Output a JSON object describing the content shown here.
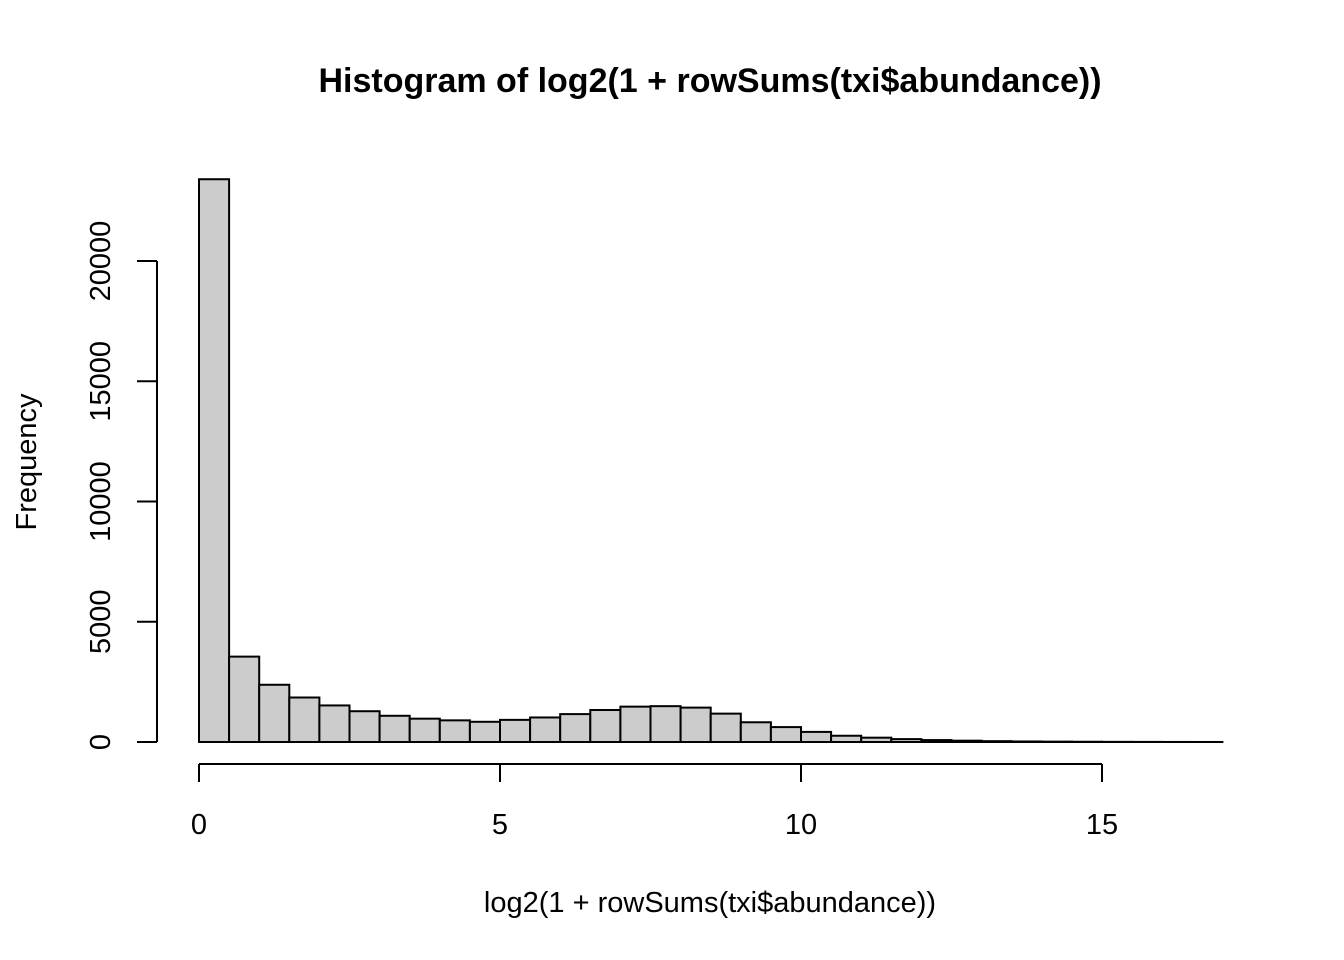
{
  "chart_data": {
    "type": "bar",
    "subtype": "histogram",
    "title": "Histogram of log2(1 + rowSums(txi$abundance))",
    "xlabel": "log2(1 + rowSums(txi$abundance))",
    "ylabel": "Frequency",
    "xlim": [
      0,
      17
    ],
    "ylim": [
      0,
      23400
    ],
    "bin_width": 0.5,
    "bins": [
      {
        "x0": 0.0,
        "x1": 0.5,
        "count": 23400
      },
      {
        "x0": 0.5,
        "x1": 1.0,
        "count": 3550
      },
      {
        "x0": 1.0,
        "x1": 1.5,
        "count": 2380
      },
      {
        "x0": 1.5,
        "x1": 2.0,
        "count": 1850
      },
      {
        "x0": 2.0,
        "x1": 2.5,
        "count": 1520
      },
      {
        "x0": 2.5,
        "x1": 3.0,
        "count": 1280
      },
      {
        "x0": 3.0,
        "x1": 3.5,
        "count": 1090
      },
      {
        "x0": 3.5,
        "x1": 4.0,
        "count": 970
      },
      {
        "x0": 4.0,
        "x1": 4.5,
        "count": 900
      },
      {
        "x0": 4.5,
        "x1": 5.0,
        "count": 840
      },
      {
        "x0": 5.0,
        "x1": 5.5,
        "count": 920
      },
      {
        "x0": 5.5,
        "x1": 6.0,
        "count": 1020
      },
      {
        "x0": 6.0,
        "x1": 6.5,
        "count": 1160
      },
      {
        "x0": 6.5,
        "x1": 7.0,
        "count": 1330
      },
      {
        "x0": 7.0,
        "x1": 7.5,
        "count": 1470
      },
      {
        "x0": 7.5,
        "x1": 8.0,
        "count": 1490
      },
      {
        "x0": 8.0,
        "x1": 8.5,
        "count": 1430
      },
      {
        "x0": 8.5,
        "x1": 9.0,
        "count": 1180
      },
      {
        "x0": 9.0,
        "x1": 9.5,
        "count": 820
      },
      {
        "x0": 9.5,
        "x1": 10.0,
        "count": 620
      },
      {
        "x0": 10.0,
        "x1": 10.5,
        "count": 420
      },
      {
        "x0": 10.5,
        "x1": 11.0,
        "count": 260
      },
      {
        "x0": 11.0,
        "x1": 11.5,
        "count": 180
      },
      {
        "x0": 11.5,
        "x1": 12.0,
        "count": 120
      },
      {
        "x0": 12.0,
        "x1": 12.5,
        "count": 80
      },
      {
        "x0": 12.5,
        "x1": 13.0,
        "count": 55
      },
      {
        "x0": 13.0,
        "x1": 13.5,
        "count": 35
      },
      {
        "x0": 13.5,
        "x1": 14.0,
        "count": 22
      },
      {
        "x0": 14.0,
        "x1": 14.5,
        "count": 15
      },
      {
        "x0": 14.5,
        "x1": 15.0,
        "count": 10
      },
      {
        "x0": 15.0,
        "x1": 15.5,
        "count": 6
      },
      {
        "x0": 15.5,
        "x1": 16.0,
        "count": 4
      },
      {
        "x0": 16.0,
        "x1": 16.5,
        "count": 2
      },
      {
        "x0": 16.5,
        "x1": 17.0,
        "count": 1
      }
    ],
    "x_ticks": [
      0,
      5,
      10,
      15
    ],
    "x_tick_labels": [
      "0",
      "5",
      "10",
      "15"
    ],
    "y_ticks": [
      0,
      5000,
      10000,
      15000,
      20000
    ],
    "y_tick_labels": [
      "0",
      "5000",
      "10000",
      "15000",
      "20000"
    ],
    "grid": false,
    "bar_color": "#cccccc",
    "edge_color": "#000000"
  }
}
